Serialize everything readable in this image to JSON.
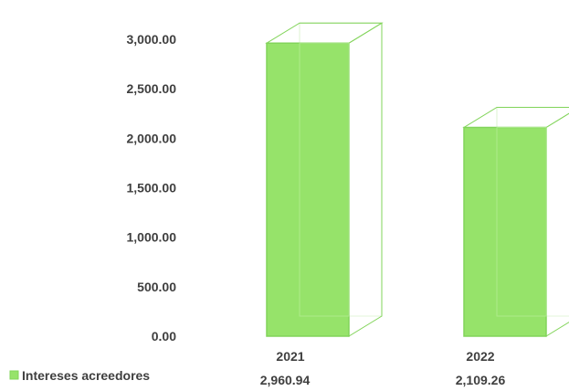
{
  "chart_data": {
    "type": "bar",
    "style": "3d-column",
    "categories": [
      "2021",
      "2022"
    ],
    "series": [
      {
        "name": "Intereses acreedores",
        "values": [
          2960.94,
          2109.26
        ],
        "value_labels": [
          "2,960.94",
          "2,109.26"
        ],
        "color": "#96e36a"
      }
    ],
    "ylim": [
      0,
      3000
    ],
    "yticks": [
      0,
      500,
      1000,
      1500,
      2000,
      2500,
      3000
    ],
    "ytick_labels": [
      "0.00",
      "500.00",
      "1,000.00",
      "1,500.00",
      "2,000.00",
      "2,500.00",
      "3,000.00"
    ],
    "title": "",
    "xlabel": "",
    "ylabel": "",
    "grid": false,
    "legend_position": "bottom-left",
    "colors": {
      "bar_fill": "#96e36a",
      "bar_edge": "#82d45a",
      "text": "#3f3f3f"
    }
  }
}
